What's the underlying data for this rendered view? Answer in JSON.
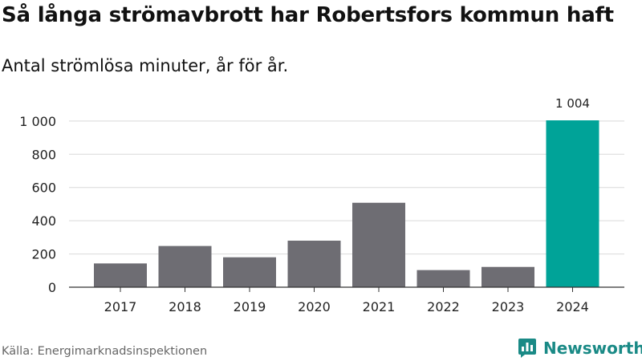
{
  "header": {
    "title": "Så långa strömavbrott har Robertsfors kommun haft",
    "subtitle": "Antal strömlösa minuter, år för år."
  },
  "footer": {
    "source": "Källa: Energimarknadsinspektionen",
    "brand": "Newsworthy",
    "brand_icon": "bar-chart-logo-icon"
  },
  "colors": {
    "bar": "#6e6d73",
    "highlight": "#00a398",
    "grid": "#d9d9d9",
    "axis": "#333333",
    "brand": "#1a8a86"
  },
  "chart_data": {
    "type": "bar",
    "categories": [
      "2017",
      "2018",
      "2019",
      "2020",
      "2021",
      "2022",
      "2023",
      "2024"
    ],
    "values": [
      143,
      248,
      180,
      280,
      508,
      103,
      122,
      1004
    ],
    "highlight_index": 7,
    "data_labels": [
      {
        "index": 7,
        "text": "1 004"
      }
    ],
    "yticks": [
      0,
      200,
      400,
      600,
      800,
      1000
    ],
    "ytick_labels": [
      "0",
      "200",
      "400",
      "600",
      "800",
      "1 000"
    ],
    "ylim": [
      0,
      1004
    ],
    "grid": true,
    "legend": "none"
  }
}
